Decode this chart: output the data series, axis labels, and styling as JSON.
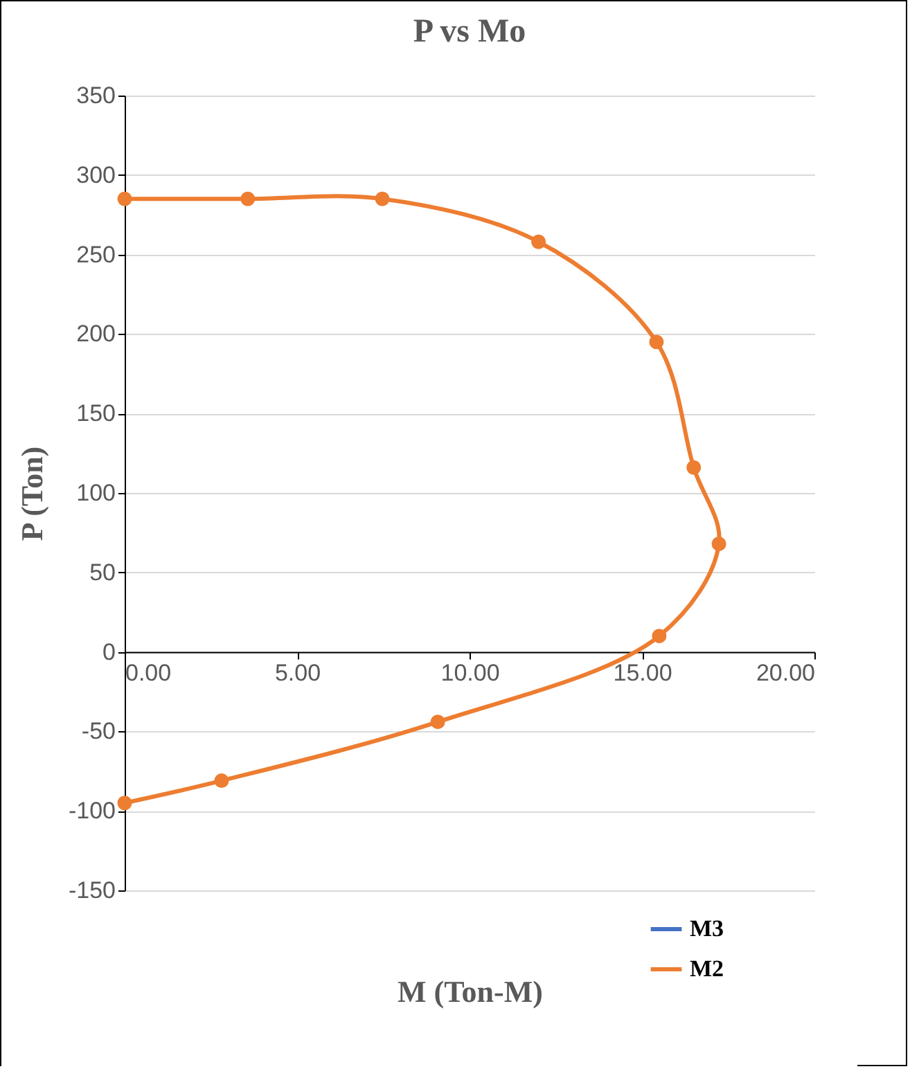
{
  "chart_data": {
    "type": "line",
    "title": "P vs Mo",
    "xlabel": "M (Ton-M)",
    "ylabel": "P (Ton)",
    "series": [
      {
        "name": "M3",
        "color": "#4472c4",
        "values": [
          null,
          null,
          null,
          null,
          null,
          null,
          null,
          null,
          null,
          null,
          null
        ]
      },
      {
        "name": "M2",
        "color": "#ed7d31",
        "x": [
          0,
          3.57,
          7.47,
          12.0,
          15.42,
          16.5,
          17.23,
          15.5,
          9.08,
          2.81,
          0
        ],
        "values": [
          285,
          285,
          285,
          258,
          195,
          116,
          68,
          10,
          -44,
          -81,
          -95
        ]
      }
    ],
    "xlim": [
      0,
      20
    ],
    "xticks": [
      {
        "value": 0,
        "label": "0.00"
      },
      {
        "value": 5,
        "label": "5.00"
      },
      {
        "value": 10,
        "label": "10.00"
      },
      {
        "value": 15,
        "label": "15.00"
      },
      {
        "value": 20,
        "label": "20.00"
      }
    ],
    "ylim": [
      -150,
      350
    ],
    "yticks": [
      -150,
      -100,
      -50,
      0,
      50,
      100,
      150,
      200,
      250,
      300,
      350
    ],
    "grid": "y",
    "legend": "bottom right",
    "marker": "circle",
    "line_style": "solid"
  }
}
